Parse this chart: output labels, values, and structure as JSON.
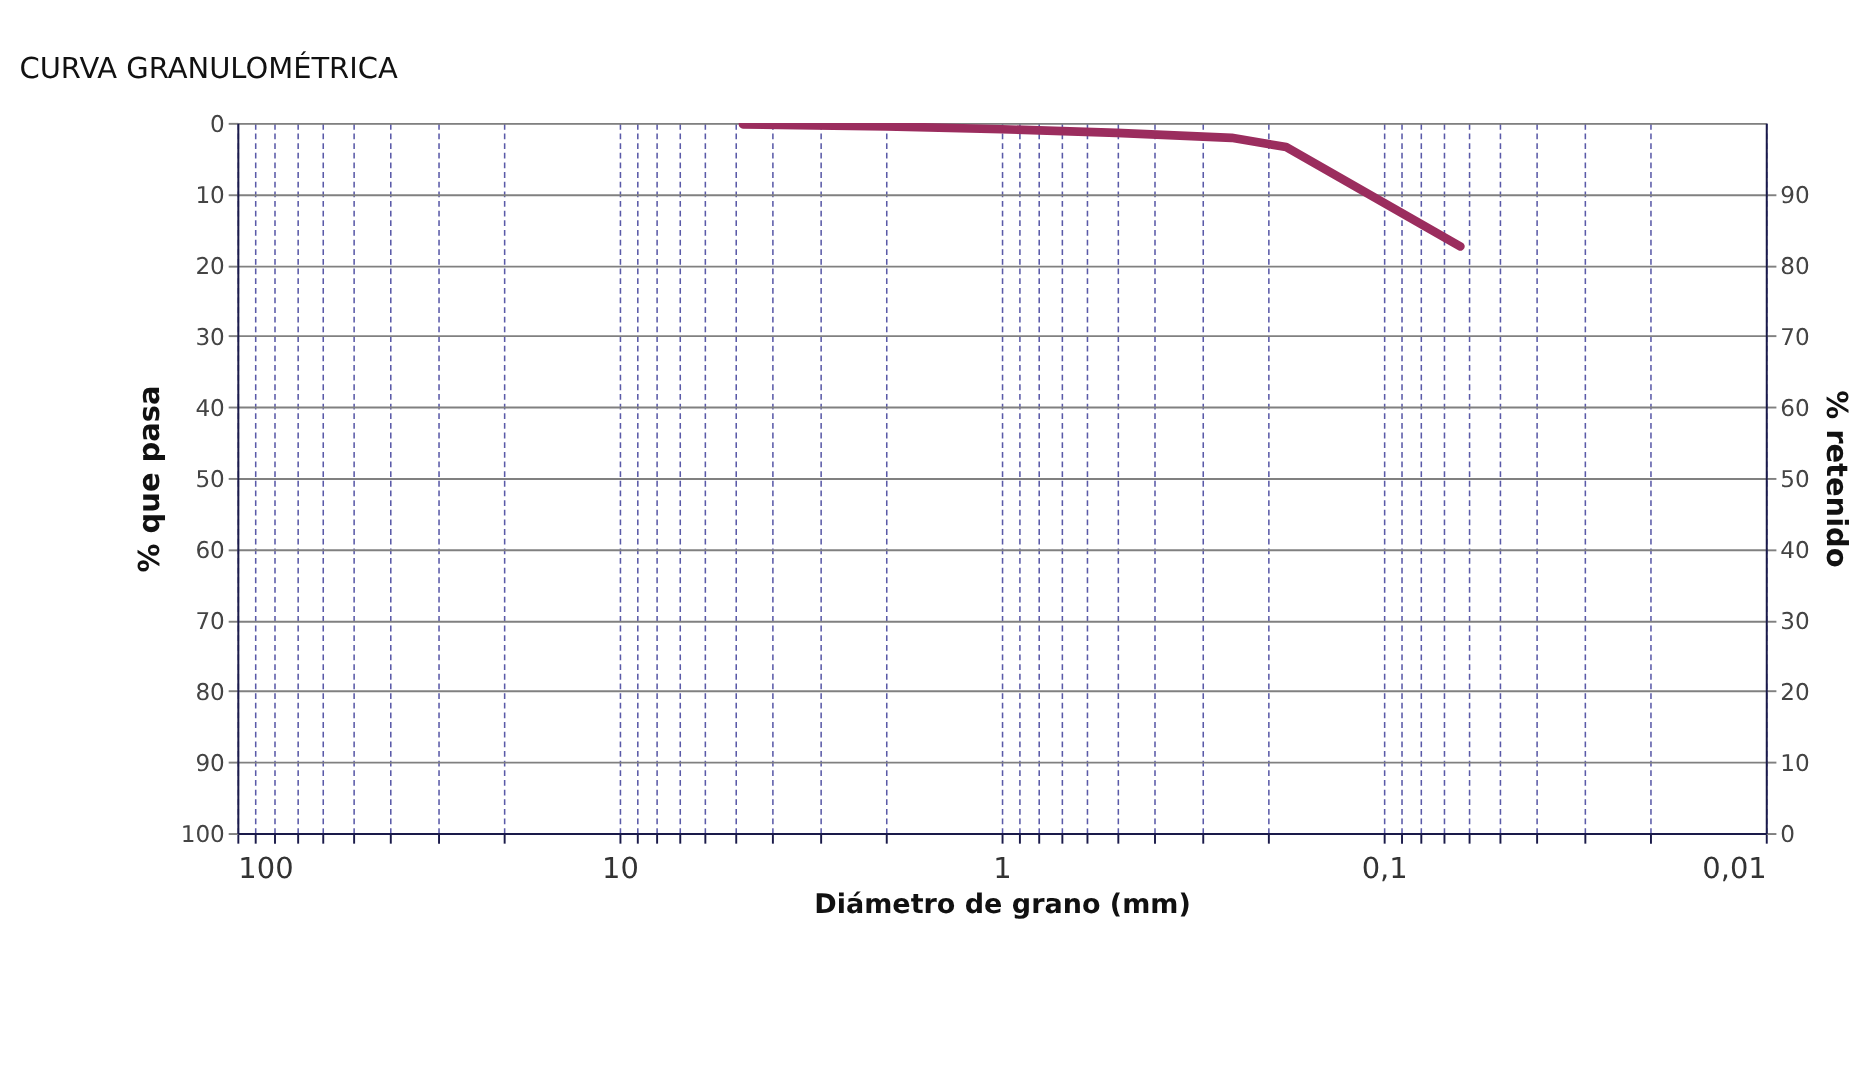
{
  "chart_data": {
    "type": "line",
    "title": "CURVA GRANULOMÉTRICA",
    "xlabel": "Diámetro de grano (mm)",
    "ylabel": "% que pasa",
    "y2label": "% retenido",
    "log": "x",
    "grid": true,
    "marker": "none",
    "line_style": "solid",
    "xlim": [
      100,
      0.01
    ],
    "xticks": [
      100,
      {
        "value": 90,
        "label": null
      },
      {
        "value": 80,
        "label": null
      },
      {
        "value": 70,
        "label": null
      },
      {
        "value": 60,
        "label": null
      },
      {
        "value": 50,
        "label": null
      },
      {
        "value": 40,
        "label": null
      },
      {
        "value": 30,
        "label": null
      },
      {
        "value": 20,
        "label": null
      },
      10,
      {
        "value": 9,
        "label": null
      },
      {
        "value": 8,
        "label": null
      },
      {
        "value": 7,
        "label": null
      },
      {
        "value": 6,
        "label": null
      },
      {
        "value": 5,
        "label": null
      },
      {
        "value": 4,
        "label": null
      },
      {
        "value": 3,
        "label": null
      },
      {
        "value": 2,
        "label": null
      },
      1,
      {
        "value": 0.9,
        "label": null
      },
      {
        "value": 0.8,
        "label": null
      },
      {
        "value": 0.7,
        "label": null
      },
      {
        "value": 0.6,
        "label": null
      },
      {
        "value": 0.5,
        "label": null
      },
      {
        "value": 0.4,
        "label": null
      },
      {
        "value": 0.3,
        "label": null
      },
      {
        "value": 0.2,
        "label": null
      },
      {
        "value": 0.1,
        "label": "0,1"
      },
      {
        "value": 0.09,
        "label": null
      },
      {
        "value": 0.08,
        "label": null
      },
      {
        "value": 0.07,
        "label": null
      },
      {
        "value": 0.06,
        "label": null
      },
      {
        "value": 0.05,
        "label": null
      },
      {
        "value": 0.04,
        "label": null
      },
      {
        "value": 0.03,
        "label": null
      },
      {
        "value": 0.02,
        "label": null
      },
      {
        "value": 0.01,
        "label": "0,01"
      }
    ],
    "ylim": [
      100,
      0
    ],
    "yticks": [
      0,
      10,
      20,
      30,
      40,
      50,
      60,
      70,
      80,
      90,
      100
    ],
    "y2lim": [
      0,
      100
    ],
    "y2ticks": [
      0,
      10,
      20,
      30,
      40,
      50,
      60,
      70,
      80,
      90
    ],
    "x": [
      4.75,
      2,
      1,
      0.5,
      0.25,
      0.18,
      0.063
    ],
    "series": [
      {
        "color": "#9b2d5e",
        "values": [
          0.2,
          0.5,
          0.9,
          1.4,
          2.1,
          3.4,
          17.4
        ]
      }
    ]
  }
}
